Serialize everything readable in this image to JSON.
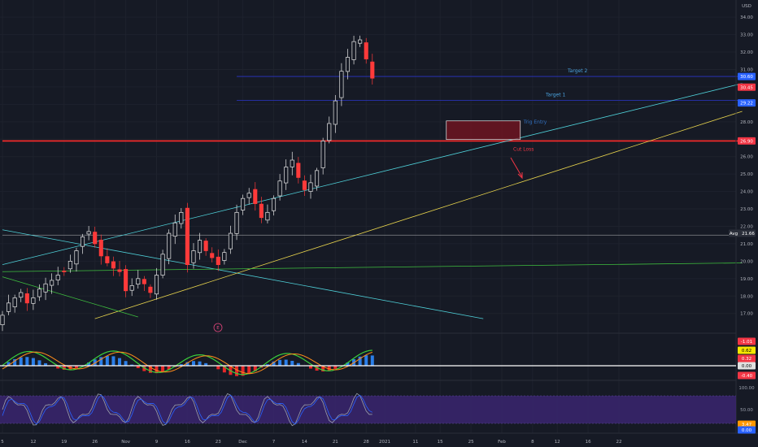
{
  "chart_data": {
    "type": "candlestick",
    "currency": "USD",
    "y_ticks": [
      "17.00",
      "18.00",
      "19.00",
      "20.00",
      "21.00",
      "22.00",
      "23.00",
      "24.00",
      "25.00",
      "26.00",
      "27.00",
      "28.00",
      "29.00",
      "30.00",
      "31.00",
      "32.00",
      "33.00",
      "34.00"
    ],
    "ylim": [
      16.1,
      34.8
    ],
    "x_ticks": [
      {
        "label": "5",
        "i": 0
      },
      {
        "label": "12",
        "i": 5
      },
      {
        "label": "19",
        "i": 10
      },
      {
        "label": "26",
        "i": 15
      },
      {
        "label": "Nov",
        "i": 20
      },
      {
        "label": "9",
        "i": 25
      },
      {
        "label": "16",
        "i": 30
      },
      {
        "label": "23",
        "i": 35
      },
      {
        "label": "Dec",
        "i": 39
      },
      {
        "label": "7",
        "i": 44
      },
      {
        "label": "14",
        "i": 49
      },
      {
        "label": "21",
        "i": 54
      },
      {
        "label": "28",
        "i": 59
      },
      {
        "label": "2021",
        "i": 62
      },
      {
        "label": "11",
        "i": 67
      },
      {
        "label": "15",
        "i": 71
      },
      {
        "label": "25",
        "i": 76
      },
      {
        "label": "Feb",
        "i": 81
      },
      {
        "label": "8",
        "i": 86
      },
      {
        "label": "12",
        "i": 90
      },
      {
        "label": "16",
        "i": 95
      },
      {
        "label": "22",
        "i": 100
      }
    ],
    "price_path": [
      [
        0,
        16.9
      ],
      [
        1,
        17.6
      ],
      [
        2,
        17.9
      ],
      [
        3,
        18.2
      ],
      [
        4,
        17.6
      ],
      [
        5,
        17.9
      ],
      [
        6,
        18.4
      ],
      [
        7,
        18.7
      ],
      [
        8,
        18.9
      ],
      [
        9,
        19.2
      ],
      [
        10,
        19.4
      ],
      [
        11,
        20.0
      ],
      [
        12,
        20.6
      ],
      [
        13,
        21.4
      ],
      [
        14,
        21.7
      ],
      [
        15,
        21.0
      ],
      [
        16,
        20.3
      ],
      [
        17,
        19.9
      ],
      [
        18,
        19.6
      ],
      [
        19,
        19.4
      ],
      [
        20,
        18.3
      ],
      [
        21,
        18.6
      ],
      [
        22,
        19.0
      ],
      [
        23,
        18.7
      ],
      [
        24,
        18.2
      ],
      [
        25,
        19.2
      ],
      [
        26,
        20.4
      ],
      [
        27,
        21.6
      ],
      [
        28,
        22.2
      ],
      [
        29,
        22.8
      ],
      [
        30,
        19.8
      ],
      [
        31,
        20.6
      ],
      [
        32,
        21.2
      ],
      [
        33,
        20.6
      ],
      [
        34,
        20.2
      ],
      [
        35,
        19.8
      ],
      [
        36,
        20.5
      ],
      [
        37,
        21.6
      ],
      [
        38,
        22.8
      ],
      [
        39,
        23.6
      ],
      [
        40,
        23.9
      ],
      [
        41,
        23.3
      ],
      [
        42,
        22.5
      ],
      [
        43,
        22.8
      ],
      [
        44,
        23.6
      ],
      [
        45,
        24.6
      ],
      [
        46,
        25.4
      ],
      [
        47,
        25.8
      ],
      [
        48,
        24.8
      ],
      [
        49,
        24.1
      ],
      [
        50,
        24.5
      ],
      [
        51,
        25.2
      ],
      [
        52,
        26.9
      ],
      [
        53,
        27.9
      ],
      [
        54,
        29.2
      ],
      [
        55,
        30.9
      ],
      [
        56,
        31.7
      ],
      [
        57,
        32.6
      ],
      [
        58,
        32.7
      ],
      [
        59,
        31.6
      ],
      [
        60,
        30.5
      ]
    ],
    "lines": [
      {
        "name": "",
        "color": "#e5e5e5",
        "points": [
          [
            0,
            21.5
          ],
          [
            120,
            21.5
          ]
        ],
        "style": "thin"
      },
      {
        "name": "",
        "color": "#ff2a2a",
        "points": [
          [
            0,
            26.9
          ],
          [
            120,
            26.9
          ]
        ],
        "style": "thick"
      },
      {
        "name": "",
        "color": "#2a34c9",
        "points": [
          [
            38,
            30.6
          ],
          [
            120,
            30.6
          ]
        ],
        "style": "solid"
      },
      {
        "name": "",
        "color": "#2a34c9",
        "points": [
          [
            38,
            29.22
          ],
          [
            120,
            29.22
          ]
        ],
        "style": "solid"
      },
      {
        "name": "",
        "color": "#4fd1d9",
        "points": [
          [
            0,
            19.8
          ],
          [
            120,
            30.2
          ]
        ],
        "style": "solid"
      },
      {
        "name": "",
        "color": "#4fd1d9",
        "points": [
          [
            0,
            21.8
          ],
          [
            78,
            16.7
          ]
        ],
        "style": "solid"
      },
      {
        "name": "",
        "color": "#e8d44d",
        "points": [
          [
            15,
            16.7
          ],
          [
            120,
            28.6
          ]
        ],
        "style": "solid"
      },
      {
        "name": "",
        "color": "#3fbf3f",
        "points": [
          [
            0,
            19.4
          ],
          [
            120,
            19.9
          ]
        ],
        "style": "solid"
      },
      {
        "name": "",
        "color": "#3fbf3f",
        "points": [
          [
            0,
            19.1
          ],
          [
            22,
            16.8
          ]
        ],
        "style": "solid"
      }
    ],
    "zone": {
      "x0": 72,
      "x1": 84,
      "y0": 26.98,
      "y1": 28.05,
      "color": "#7a1420"
    },
    "annotations": {
      "target2": "Target 2",
      "target1": "Target 1",
      "entry": "Trig Entry",
      "stop": "Cut Loss",
      "earnings": "E"
    },
    "right_labels": [
      {
        "text": "30.60",
        "color": "#2962ff"
      },
      {
        "text": "30.45",
        "color": "#f23645"
      },
      {
        "text": "29.22",
        "color": "#2962ff"
      },
      {
        "text": "26.90",
        "color": "#f23645"
      },
      {
        "text": "21.66",
        "color": "#2a2e39"
      },
      {
        "text": "Avg",
        "color": "#2a2e39"
      }
    ],
    "macd_labels": [
      {
        "text": "-1.01",
        "color": "#f23645"
      },
      {
        "text": "0.62",
        "color": "#f5e600"
      },
      {
        "text": "0.32",
        "color": "#f23645"
      },
      {
        "text": "0.00",
        "color": "#e0e0e0"
      },
      {
        "text": "-0.40",
        "color": "#f23645"
      }
    ],
    "stoch_labels": [
      {
        "text": "100.00",
        "color": "#9aa0ac"
      },
      {
        "text": "50.00",
        "color": "#9aa0ac"
      },
      {
        "text": "3.47",
        "color": "#ff9800"
      },
      {
        "text": "0.00",
        "color": "#2962ff"
      }
    ],
    "grid": true
  }
}
